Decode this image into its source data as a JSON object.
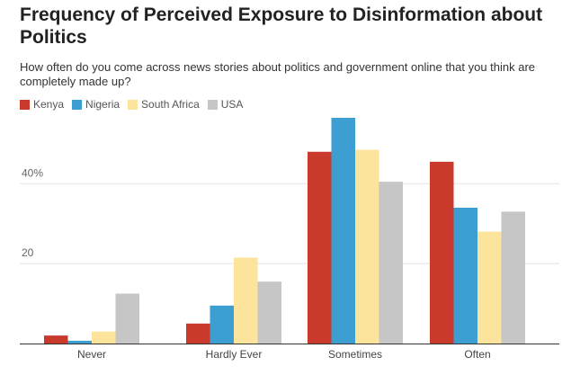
{
  "header": {
    "title": "Frequency of Perceived Exposure to Disinformation about Politics",
    "subtitle": "How often do you come across news stories about politics and government online that you think are completely made up?"
  },
  "legend": [
    {
      "label": "Kenya",
      "color": "#c9392c"
    },
    {
      "label": "Nigeria",
      "color": "#3d9fd1"
    },
    {
      "label": "South Africa",
      "color": "#fce49c"
    },
    {
      "label": "USA",
      "color": "#c6c6c6"
    }
  ],
  "chart_data": {
    "type": "bar",
    "title": "Frequency of Perceived Exposure to Disinformation about Politics",
    "subtitle": "How often do you come across news stories about politics and government online that you think are completely made up?",
    "xlabel": "",
    "ylabel": "",
    "categories": [
      "Never",
      "Hardly Ever",
      "Sometimes",
      "Often"
    ],
    "series": [
      {
        "name": "Kenya",
        "color": "#c9392c",
        "values": [
          2,
          5,
          48,
          45.5
        ]
      },
      {
        "name": "Nigeria",
        "color": "#3d9fd1",
        "values": [
          0.7,
          9.5,
          56.5,
          34
        ]
      },
      {
        "name": "South Africa",
        "color": "#fce49c",
        "values": [
          3,
          21.5,
          48.5,
          28
        ]
      },
      {
        "name": "USA",
        "color": "#c6c6c6",
        "values": [
          12.5,
          15.5,
          40.5,
          33
        ]
      }
    ],
    "ylim": [
      0,
      56.5
    ],
    "yticks": [
      {
        "value": 20,
        "label": "20"
      },
      {
        "value": 40,
        "label": "40%"
      }
    ],
    "grid": true,
    "legend_position": "top-left"
  }
}
